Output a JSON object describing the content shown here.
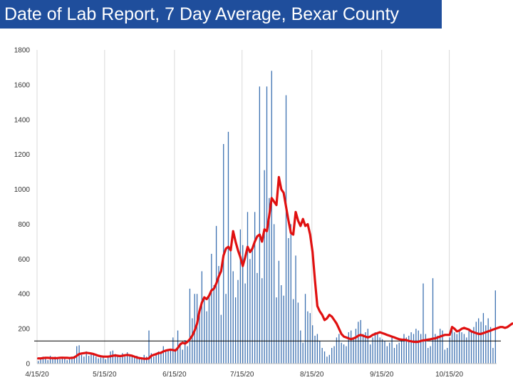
{
  "header": {
    "title": "Date of Lab Report, 7 Day Average, Bexar County"
  },
  "colors": {
    "title_bg": "#1f4e9c",
    "bars": "#3a6fb0",
    "average": "#e01010",
    "threshold": "#000000",
    "grid": "#d9d9d9"
  },
  "chart_data": {
    "type": "bar",
    "title": "Date of Lab Report, 7 Day Average, Bexar County",
    "xlabel": "",
    "ylabel": "",
    "x_start": "2020-04-15",
    "x_end": "2020-11-05",
    "ylim": [
      0,
      1800
    ],
    "yticks": [
      0,
      200,
      400,
      600,
      800,
      1000,
      1200,
      1400,
      1600,
      1800
    ],
    "xtick_labels": [
      "4/15/20",
      "5/15/20",
      "6/15/20",
      "7/15/20",
      "8/15/20",
      "9/15/20",
      "10/15/20"
    ],
    "xtick_dates": [
      "2020-04-15",
      "2020-05-15",
      "2020-06-15",
      "2020-07-15",
      "2020-08-15",
      "2020-09-15",
      "2020-10-15"
    ],
    "grid": "vertical",
    "threshold": 130,
    "series": [
      {
        "kind": "bar",
        "values": [
          15,
          25,
          40,
          30,
          20,
          45,
          35,
          40,
          30,
          25,
          35,
          30,
          20,
          30,
          40,
          45,
          100,
          105,
          50,
          40,
          70,
          45,
          60,
          50,
          40,
          30,
          35,
          45,
          25,
          40,
          70,
          75,
          55,
          50,
          35,
          60,
          40,
          65,
          50,
          40,
          35,
          45,
          30,
          25,
          50,
          40,
          190,
          60,
          40,
          55,
          70,
          60,
          100,
          70,
          80,
          75,
          150,
          85,
          190,
          120,
          80,
          135,
          100,
          430,
          260,
          400,
          400,
          280,
          530,
          380,
          300,
          390,
          630,
          450,
          790,
          560,
          280,
          1260,
          400,
          1330,
          650,
          530,
          380,
          480,
          770,
          680,
          460,
          870,
          600,
          670,
          870,
          520,
          1590,
          490,
          1110,
          1590,
          950,
          1680,
          800,
          380,
          590,
          450,
          390,
          1540,
          720,
          800,
          370,
          620,
          350,
          190,
          120,
          400,
          300,
          290,
          220,
          160,
          170,
          130,
          90,
          70,
          40,
          50,
          90,
          100,
          150,
          170,
          120,
          110,
          100,
          180,
          190,
          140,
          200,
          240,
          250,
          170,
          180,
          200,
          110,
          150,
          180,
          170,
          150,
          140,
          130,
          100,
          120,
          150,
          90,
          110,
          120,
          140,
          170,
          150,
          160,
          180,
          170,
          200,
          190,
          170,
          460,
          170,
          90,
          100,
          490,
          170,
          160,
          200,
          190,
          80,
          90,
          150,
          210,
          180,
          170,
          190,
          180,
          170,
          150,
          200,
          190,
          210,
          240,
          260,
          240,
          290,
          220,
          260,
          210,
          90,
          420
        ]
      },
      {
        "kind": "line",
        "name": "7 Day Average",
        "values": [
          30,
          30,
          32,
          33,
          33,
          32,
          32,
          31,
          32,
          33,
          34,
          33,
          33,
          32,
          33,
          35,
          45,
          55,
          58,
          60,
          62,
          60,
          58,
          55,
          50,
          45,
          42,
          40,
          40,
          40,
          42,
          45,
          47,
          45,
          43,
          45,
          48,
          50,
          48,
          45,
          40,
          35,
          32,
          30,
          28,
          28,
          30,
          45,
          50,
          55,
          60,
          62,
          70,
          75,
          78,
          80,
          78,
          75,
          90,
          110,
          120,
          115,
          125,
          140,
          160,
          190,
          230,
          300,
          350,
          380,
          370,
          390,
          420,
          430,
          460,
          500,
          530,
          620,
          660,
          670,
          650,
          760,
          700,
          650,
          610,
          560,
          610,
          670,
          640,
          660,
          700,
          730,
          740,
          700,
          770,
          760,
          850,
          950,
          930,
          910,
          1070,
          1000,
          980,
          900,
          820,
          750,
          740,
          870,
          820,
          790,
          830,
          790,
          800,
          740,
          640,
          480,
          330,
          300,
          280,
          250,
          260,
          280,
          270,
          250,
          230,
          200,
          170,
          155,
          150,
          145,
          140,
          145,
          150,
          160,
          165,
          160,
          155,
          150,
          155,
          165,
          170,
          175,
          180,
          175,
          170,
          165,
          160,
          155,
          150,
          145,
          140,
          138,
          137,
          135,
          130,
          128,
          125,
          124,
          125,
          130,
          133,
          135,
          138,
          140,
          143,
          145,
          150,
          155,
          160,
          165,
          165,
          165,
          210,
          200,
          185,
          190,
          200,
          205,
          200,
          195,
          185,
          180,
          175,
          170,
          170,
          175,
          180,
          185,
          190,
          195,
          200,
          205,
          210,
          210,
          205,
          210,
          220,
          230
        ]
      }
    ]
  }
}
